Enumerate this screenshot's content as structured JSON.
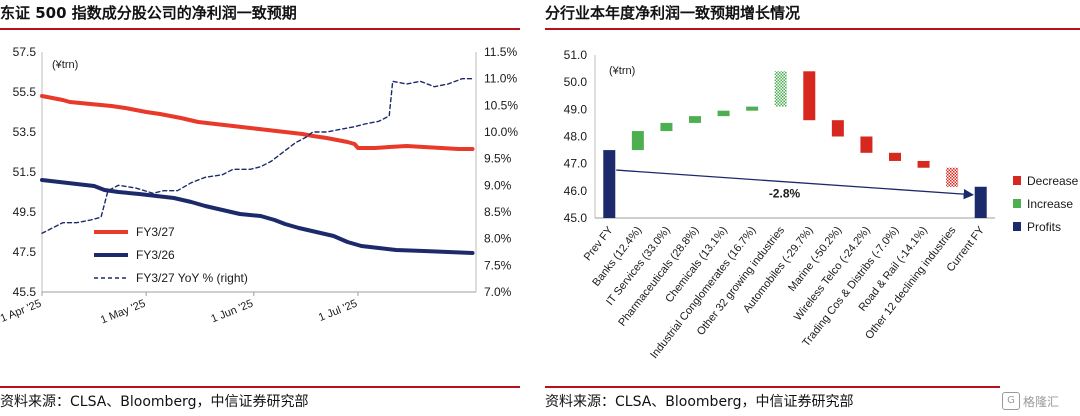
{
  "left": {
    "title": "东证 500 指数成分股公司的净利润一致预期",
    "source": "资料来源：CLSA、Bloomberg，中信证券研究部",
    "chart_data": {
      "type": "line",
      "unit_label": "(¥trn)",
      "ylim": [
        45.5,
        57.5
      ],
      "yticks": [
        "57.5",
        "55.5",
        "53.5",
        "51.5",
        "49.5",
        "47.5",
        "45.5"
      ],
      "y2lim": [
        7.0,
        11.5
      ],
      "y2ticks": [
        "11.5%",
        "11.0%",
        "10.5%",
        "10.0%",
        "9.5%",
        "9.0%",
        "8.5%",
        "8.0%",
        "7.5%",
        "7.0%"
      ],
      "xlim": [
        0,
        125
      ],
      "xticks": [
        {
          "label": "1 Apr '25",
          "x": 0
        },
        {
          "label": "1 May '25",
          "x": 30
        },
        {
          "label": "1 Jun '25",
          "x": 61
        },
        {
          "label": "1 Jul '25",
          "x": 91
        }
      ],
      "legend": [
        "FY3/27",
        "FY3/26",
        "FY3/27 YoY % (right)"
      ],
      "series": [
        {
          "name": "FY3/27",
          "axis": "left",
          "color": "#e8392a",
          "style": "solid",
          "points": [
            [
              0,
              55.3
            ],
            [
              3,
              55.2
            ],
            [
              6,
              55.1
            ],
            [
              8,
              55.0
            ],
            [
              14,
              54.9
            ],
            [
              20,
              54.8
            ],
            [
              24,
              54.7
            ],
            [
              30,
              54.5
            ],
            [
              34,
              54.4
            ],
            [
              40,
              54.2
            ],
            [
              45,
              54.0
            ],
            [
              50,
              53.9
            ],
            [
              55,
              53.8
            ],
            [
              60,
              53.7
            ],
            [
              65,
              53.6
            ],
            [
              70,
              53.5
            ],
            [
              75,
              53.4
            ],
            [
              78,
              53.3
            ],
            [
              82,
              53.2
            ],
            [
              85,
              53.1
            ],
            [
              88,
              53.0
            ],
            [
              90,
              52.9
            ],
            [
              91,
              52.7
            ],
            [
              96,
              52.7
            ],
            [
              100,
              52.75
            ],
            [
              105,
              52.8
            ],
            [
              110,
              52.75
            ],
            [
              115,
              52.7
            ],
            [
              120,
              52.65
            ],
            [
              124,
              52.65
            ]
          ]
        },
        {
          "name": "FY3/26",
          "axis": "left",
          "color": "#1c2a6b",
          "style": "solid",
          "points": [
            [
              0,
              51.1
            ],
            [
              5,
              51.0
            ],
            [
              10,
              50.9
            ],
            [
              15,
              50.8
            ],
            [
              18,
              50.6
            ],
            [
              22,
              50.5
            ],
            [
              28,
              50.4
            ],
            [
              33,
              50.3
            ],
            [
              38,
              50.2
            ],
            [
              43,
              50.0
            ],
            [
              47,
              49.8
            ],
            [
              52,
              49.6
            ],
            [
              57,
              49.4
            ],
            [
              63,
              49.3
            ],
            [
              67,
              49.1
            ],
            [
              70,
              48.9
            ],
            [
              74,
              48.7
            ],
            [
              79,
              48.5
            ],
            [
              84,
              48.3
            ],
            [
              88,
              48.0
            ],
            [
              92,
              47.8
            ],
            [
              97,
              47.7
            ],
            [
              102,
              47.6
            ],
            [
              110,
              47.55
            ],
            [
              117,
              47.5
            ],
            [
              124,
              47.45
            ]
          ]
        },
        {
          "name": "FY3/27 YoY % (right)",
          "axis": "right",
          "color": "#1c2a6b",
          "style": "dashed",
          "points": [
            [
              0,
              8.1
            ],
            [
              3,
              8.2
            ],
            [
              6,
              8.3
            ],
            [
              10,
              8.3
            ],
            [
              14,
              8.35
            ],
            [
              17,
              8.4
            ],
            [
              19,
              8.9
            ],
            [
              22,
              9.0
            ],
            [
              27,
              8.95
            ],
            [
              32,
              8.85
            ],
            [
              35,
              8.9
            ],
            [
              39,
              8.9
            ],
            [
              43,
              9.05
            ],
            [
              47,
              9.15
            ],
            [
              52,
              9.2
            ],
            [
              55,
              9.3
            ],
            [
              60,
              9.3
            ],
            [
              63,
              9.35
            ],
            [
              66,
              9.45
            ],
            [
              70,
              9.65
            ],
            [
              73,
              9.8
            ],
            [
              76,
              9.9
            ],
            [
              78,
              10.0
            ],
            [
              82,
              10.0
            ],
            [
              86,
              10.05
            ],
            [
              90,
              10.1
            ],
            [
              93,
              10.15
            ],
            [
              97,
              10.2
            ],
            [
              100,
              10.3
            ],
            [
              101,
              10.95
            ],
            [
              105,
              10.9
            ],
            [
              109,
              10.95
            ],
            [
              113,
              10.85
            ],
            [
              117,
              10.9
            ],
            [
              121,
              11.0
            ],
            [
              124,
              11.0
            ]
          ]
        }
      ]
    }
  },
  "right": {
    "title": "分行业本年度净利润一致预期增长情况",
    "source": "资料来源：CLSA、Bloomberg，中信证券研究部",
    "chart_data": {
      "type": "bar",
      "subtype": "waterfall",
      "unit_label": "(¥trn)",
      "ylim": [
        45.0,
        51.0
      ],
      "yticks": [
        "51.0",
        "50.0",
        "49.0",
        "48.0",
        "47.0",
        "46.0",
        "45.0"
      ],
      "annotation": "-2.8%",
      "legend": [
        "Decrease",
        "Increase",
        "Profits"
      ],
      "colors": {
        "Decrease": "#d7281f",
        "Increase": "#4daf50",
        "Profits": "#1c2a6b"
      },
      "categories": [
        "Prev FY",
        "Banks (12.4%)",
        "IT Services (33.0%)",
        "Pharmaceuticals (28.8%)",
        "Chemicals (13.1%)",
        "Industrial Conglomerates (16.7%)",
        "Other 32 growing industries",
        "Automobiles (-29.7%)",
        "Marine (-50.2%)",
        "Wireless Telco (-24.2%)",
        "Trading Cos & Distribs (-7.0%)",
        "Road & Rail (-14.1%)",
        "Other 12 declining industries",
        "Current FY"
      ],
      "bars": [
        {
          "kind": "Profits",
          "from": 45.0,
          "to": 47.5
        },
        {
          "kind": "Increase",
          "from": 47.5,
          "to": 48.2
        },
        {
          "kind": "Increase",
          "from": 48.2,
          "to": 48.5
        },
        {
          "kind": "Increase",
          "from": 48.5,
          "to": 48.75
        },
        {
          "kind": "Increase",
          "from": 48.75,
          "to": 48.95
        },
        {
          "kind": "Increase",
          "from": 48.95,
          "to": 49.1
        },
        {
          "kind": "Increase",
          "from": 49.1,
          "to": 50.4,
          "pattern": true
        },
        {
          "kind": "Decrease",
          "from": 50.4,
          "to": 48.6
        },
        {
          "kind": "Decrease",
          "from": 48.6,
          "to": 48.0
        },
        {
          "kind": "Decrease",
          "from": 48.0,
          "to": 47.4
        },
        {
          "kind": "Decrease",
          "from": 47.4,
          "to": 47.1
        },
        {
          "kind": "Decrease",
          "from": 47.1,
          "to": 46.85
        },
        {
          "kind": "Decrease",
          "from": 46.85,
          "to": 46.15,
          "pattern": true
        },
        {
          "kind": "Profits",
          "from": 45.0,
          "to": 46.15
        }
      ]
    }
  },
  "watermark": {
    "text": "格隆汇",
    "logo": "G"
  }
}
